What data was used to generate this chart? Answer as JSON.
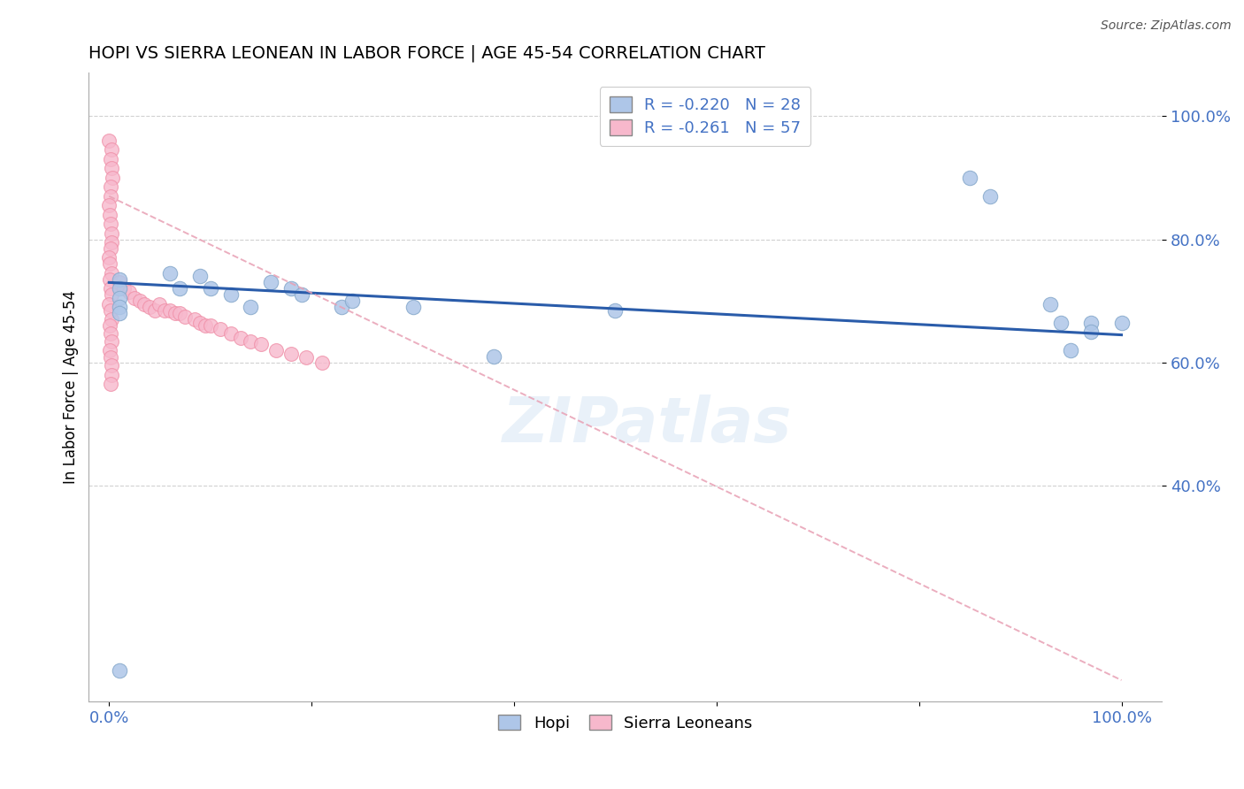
{
  "title": "HOPI VS SIERRA LEONEAN IN LABOR FORCE | AGE 45-54 CORRELATION CHART",
  "source": "Source: ZipAtlas.com",
  "ylabel_label": "In Labor Force | Age 45-54",
  "hopi_color": "#aec6e8",
  "hopi_edge_color": "#aec6e8",
  "sierra_color": "#f7b8cc",
  "sierra_edge_color": "#f090a8",
  "hopi_line_color": "#2a5caa",
  "sierra_line_color": "#e8a0b4",
  "hopi_x": [
    0.01,
    0.01,
    0.01,
    0.01,
    0.01,
    0.01,
    0.06,
    0.07,
    0.09,
    0.1,
    0.12,
    0.14,
    0.16,
    0.18,
    0.19,
    0.23,
    0.24,
    0.3,
    0.38,
    0.5,
    0.85,
    0.87,
    0.93,
    0.94,
    0.95,
    0.97,
    0.97,
    1.0
  ],
  "hopi_y": [
    0.1,
    0.735,
    0.72,
    0.705,
    0.69,
    0.68,
    0.745,
    0.72,
    0.74,
    0.72,
    0.71,
    0.69,
    0.73,
    0.72,
    0.71,
    0.69,
    0.7,
    0.69,
    0.61,
    0.685,
    0.9,
    0.87,
    0.695,
    0.665,
    0.62,
    0.665,
    0.65,
    0.665
  ],
  "sierra_x": [
    0.0,
    0.0,
    0.0,
    0.0,
    0.0,
    0.0,
    0.0,
    0.0,
    0.0,
    0.0,
    0.0,
    0.0,
    0.0,
    0.0,
    0.0,
    0.0,
    0.0,
    0.0,
    0.0,
    0.0,
    0.0,
    0.0,
    0.0,
    0.0,
    0.0,
    0.0,
    0.0,
    0.0,
    0.0,
    0.0,
    0.01,
    0.015,
    0.02,
    0.025,
    0.03,
    0.035,
    0.04,
    0.045,
    0.05,
    0.055,
    0.06,
    0.065,
    0.07,
    0.075,
    0.085,
    0.09,
    0.095,
    0.1,
    0.11,
    0.12,
    0.13,
    0.14,
    0.15,
    0.165,
    0.18,
    0.195,
    0.21
  ],
  "sierra_y": [
    0.96,
    0.945,
    0.93,
    0.915,
    0.9,
    0.885,
    0.87,
    0.855,
    0.84,
    0.825,
    0.81,
    0.795,
    0.785,
    0.77,
    0.76,
    0.745,
    0.735,
    0.72,
    0.71,
    0.695,
    0.685,
    0.67,
    0.66,
    0.648,
    0.635,
    0.62,
    0.608,
    0.595,
    0.58,
    0.565,
    0.73,
    0.72,
    0.715,
    0.705,
    0.7,
    0.695,
    0.69,
    0.685,
    0.695,
    0.685,
    0.685,
    0.68,
    0.68,
    0.675,
    0.67,
    0.665,
    0.66,
    0.66,
    0.655,
    0.648,
    0.64,
    0.635,
    0.63,
    0.62,
    0.615,
    0.608,
    0.6
  ],
  "hopi_line_x0": 0.0,
  "hopi_line_x1": 1.0,
  "hopi_line_y0": 0.73,
  "hopi_line_y1": 0.645,
  "sierra_line_x0": 0.0,
  "sierra_line_x1": 1.0,
  "sierra_line_y0": 0.87,
  "sierra_line_y1": 0.085,
  "ytick_positions": [
    0.4,
    0.6,
    0.8,
    1.0
  ],
  "ytick_labels": [
    "40.0%",
    "60.0%",
    "80.0%",
    "100.0%"
  ],
  "xtick_positions": [
    0.0,
    0.2,
    0.4,
    0.6,
    0.8,
    1.0
  ],
  "xtick_labels": [
    "0.0%",
    "",
    "",
    "",
    "",
    "100.0%"
  ],
  "xlim": [
    -0.02,
    1.04
  ],
  "ylim": [
    0.05,
    1.07
  ],
  "legend1_label": "R = -0.220   N = 28",
  "legend2_label": "R = -0.261   N = 57",
  "bottom_legend1": "Hopi",
  "bottom_legend2": "Sierra Leoneans",
  "watermark": "ZIPatlas",
  "grid_color": "#cccccc",
  "background_color": "#ffffff",
  "title_fontsize": 14,
  "source_text": "Source: ZipAtlas.com"
}
